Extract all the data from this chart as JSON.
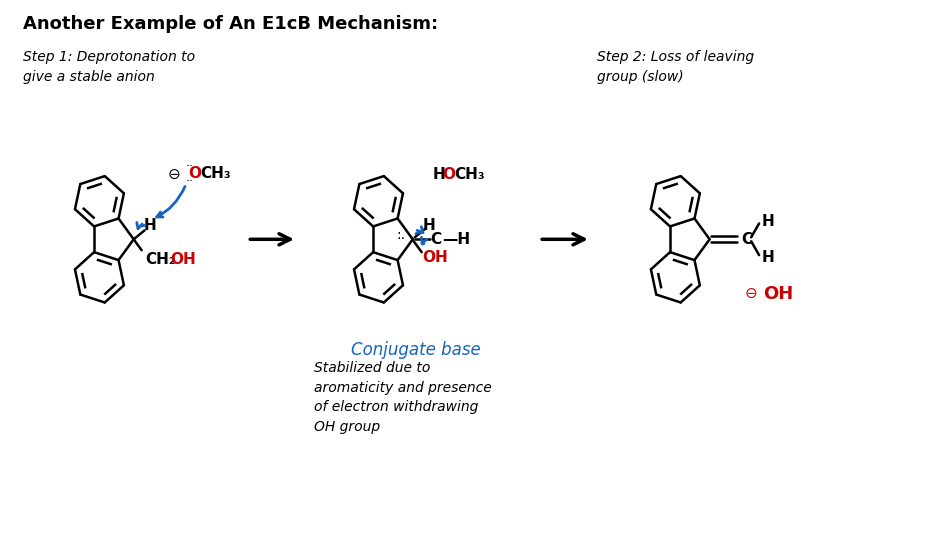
{
  "title": "Another Example of An E1cB Mechanism:",
  "title_fontsize": 13,
  "bg_color": "#ffffff",
  "step1_label": "Step 1: Deprotonation to\ngive a stable anion",
  "step2_label": "Step 2: Loss of leaving\ngroup (slow)",
  "conjugate_label": "Conjugate base",
  "stabilized_label": "Stabilized due to\naromaticity and presence\nof electron withdrawing\nOH group",
  "blue_color": "#1565C0",
  "red_color": "#CC0000",
  "black_color": "#000000"
}
